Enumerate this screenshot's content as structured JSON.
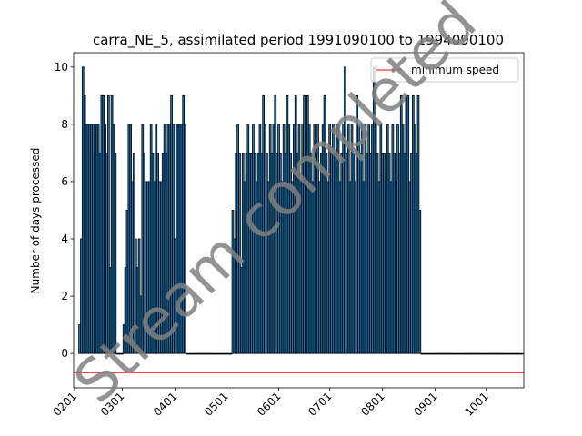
{
  "chart_data": {
    "type": "bar",
    "title": "carra_NE_5, assimilated period 1991090100 to 1994090100",
    "ylabel": "Number of days processed",
    "watermark": "Stream completed",
    "color": "#1f77b4",
    "edgecolor": "#000000",
    "xlim": [
      -0.5,
      264
    ],
    "ylim": [
      -1.2,
      10.5
    ],
    "yticks": [
      0,
      2,
      4,
      6,
      8,
      10
    ],
    "xticks": [
      {
        "value": 0,
        "label": "0201"
      },
      {
        "value": 28,
        "label": "0301"
      },
      {
        "value": 59,
        "label": "0401"
      },
      {
        "value": 89,
        "label": "0501"
      },
      {
        "value": 120,
        "label": "0601"
      },
      {
        "value": 150,
        "label": "0701"
      },
      {
        "value": 181,
        "label": "0801"
      },
      {
        "value": 212,
        "label": "0901"
      },
      {
        "value": 242,
        "label": "1001"
      }
    ],
    "legend": "upper right",
    "hlines": [
      {
        "name": "minimum speed",
        "value": -0.67,
        "color": "#ff0000"
      }
    ],
    "x": [
      3,
      4,
      5,
      6,
      7,
      8,
      9,
      10,
      11,
      12,
      13,
      14,
      15,
      16,
      17,
      18,
      19,
      20,
      21,
      22,
      23,
      24,
      25,
      26,
      27,
      28,
      29,
      30,
      31,
      32,
      33,
      34,
      35,
      36,
      37,
      38,
      39,
      40,
      41,
      42,
      43,
      44,
      45,
      46,
      47,
      48,
      49,
      50,
      51,
      52,
      53,
      54,
      55,
      56,
      57,
      58,
      59,
      60,
      61,
      62,
      63,
      64,
      65,
      66,
      67,
      68,
      69,
      70,
      71,
      72,
      73,
      74,
      75,
      76,
      77,
      78,
      79,
      80,
      81,
      82,
      83,
      84,
      85,
      86,
      87,
      88,
      89,
      90,
      91,
      92,
      93,
      94,
      95,
      96,
      97,
      98,
      99,
      100,
      101,
      102,
      103,
      104,
      105,
      106,
      107,
      108,
      109,
      110,
      111,
      112,
      113,
      114,
      115,
      116,
      117,
      118,
      119,
      120,
      121,
      122,
      123,
      124,
      125,
      126,
      127,
      128,
      129,
      130,
      131,
      132,
      133,
      134,
      135,
      136,
      137,
      138,
      139,
      140,
      141,
      142,
      143,
      144,
      145,
      146,
      147,
      148,
      149,
      150,
      151,
      152,
      153,
      154,
      155,
      156,
      157,
      158,
      159,
      160,
      161,
      162,
      163,
      164,
      165,
      166,
      167,
      168,
      169,
      170,
      171,
      172,
      173,
      174,
      175,
      176,
      177,
      178,
      179,
      180,
      181,
      182,
      183,
      184,
      185,
      186,
      187,
      188,
      189,
      190,
      191,
      192,
      193,
      194,
      195,
      196,
      197,
      198,
      199,
      200,
      201,
      202,
      203,
      204,
      205,
      206,
      207,
      208,
      209,
      210,
      211,
      212,
      213,
      214,
      215,
      216,
      217,
      218,
      219,
      220,
      221,
      222,
      223,
      224,
      225,
      226,
      227,
      228,
      229,
      230,
      231,
      232,
      233,
      234,
      235,
      236,
      237,
      238,
      239,
      240,
      241,
      242,
      243,
      244,
      245,
      246,
      247,
      248,
      249,
      250,
      251,
      252,
      253,
      254,
      255,
      256,
      257,
      258,
      259,
      260,
      261,
      262,
      263
    ],
    "values": [
      1,
      4,
      10,
      9,
      8,
      8,
      8,
      8,
      8,
      7,
      8,
      8,
      7,
      9,
      9,
      8,
      7,
      9,
      3,
      9,
      8,
      7,
      0,
      0,
      0,
      0,
      1,
      3,
      5,
      8,
      8,
      6,
      7,
      4,
      3,
      4,
      2,
      8,
      7,
      6,
      6,
      6,
      8,
      7,
      6,
      8,
      7,
      6,
      6,
      7,
      8,
      7,
      8,
      8,
      9,
      8,
      4,
      8,
      8,
      8,
      8,
      9,
      8,
      0,
      0,
      0,
      0,
      0,
      0,
      0,
      0,
      0,
      0,
      0,
      0,
      0,
      0,
      0,
      0,
      0,
      0,
      0,
      0,
      0,
      0,
      0,
      0,
      0,
      0,
      0,
      5,
      4,
      7,
      8,
      7,
      3,
      7,
      6,
      7,
      8,
      7,
      7,
      8,
      7,
      6,
      7,
      8,
      7,
      9,
      8,
      7,
      6,
      8,
      7,
      8,
      9,
      7,
      8,
      7,
      6,
      8,
      7,
      9,
      8,
      7,
      6,
      8,
      9,
      7,
      8,
      6,
      8,
      9,
      7,
      9,
      8,
      7,
      6,
      8,
      7,
      8,
      6,
      7,
      8,
      9,
      7,
      6,
      8,
      7,
      8,
      7,
      8,
      8,
      6,
      7,
      8,
      10,
      7,
      8,
      6,
      8,
      7,
      6,
      9,
      8,
      7,
      8,
      6,
      8,
      7,
      8,
      7,
      8,
      10,
      8,
      7,
      6,
      8,
      7,
      7,
      6,
      8,
      7,
      6,
      8,
      7,
      6,
      8,
      7,
      9,
      8,
      7,
      9,
      9,
      6,
      7,
      9,
      8,
      7,
      9,
      5,
      0,
      0,
      0,
      0,
      0,
      0,
      0,
      0,
      0,
      0,
      0,
      0,
      0,
      0,
      0,
      0,
      0,
      0,
      0,
      0,
      0,
      0,
      0,
      0,
      0,
      0,
      0,
      0,
      0,
      0,
      0,
      0,
      0,
      0,
      0,
      0,
      0,
      0,
      0,
      0,
      0,
      0,
      0,
      0,
      0,
      0,
      0,
      0,
      0,
      0,
      0,
      0,
      0,
      0,
      0,
      0,
      0,
      0,
      0,
      0
    ]
  }
}
